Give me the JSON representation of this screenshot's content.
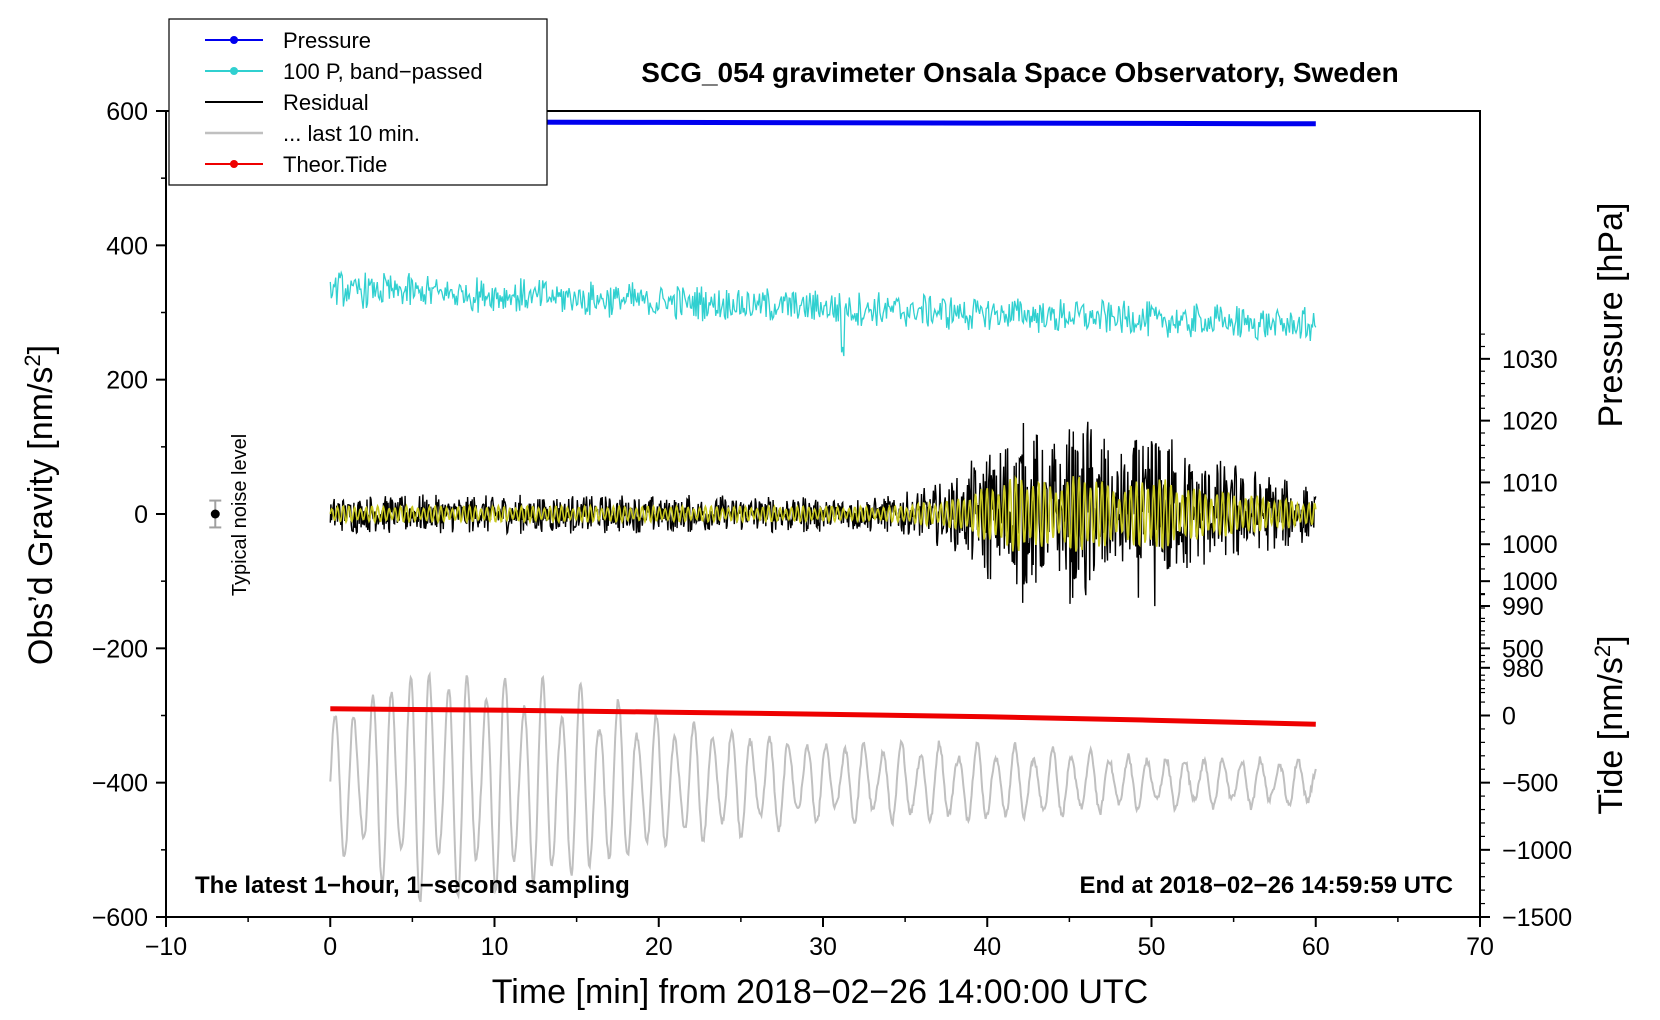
{
  "chart_data": {
    "type": "line",
    "title": "SCG_054 gravimeter Onsala Space Observatory, Sweden",
    "xlabel": "Time [min] from 2018−02−26 14:00:00 UTC",
    "ylabel_left": "Obs’d Gravity [nm/s",
    "ylabel_left_sup": "2",
    "ylabel_left_close": "]",
    "ylabel_right_pressure": "Pressure [hPa]",
    "ylabel_right_tide": "Tide [nm/s",
    "ylabel_right_tide_sup": "2",
    "ylabel_right_tide_close": "]",
    "xlim": [
      -10,
      70
    ],
    "ylim": [
      -600,
      600
    ],
    "x_ticks": [
      {
        "value": -10,
        "label": "−10"
      },
      {
        "value": 0,
        "label": "0"
      },
      {
        "value": 10,
        "label": "10"
      },
      {
        "value": 20,
        "label": "20"
      },
      {
        "value": 30,
        "label": "30"
      },
      {
        "value": 40,
        "label": "40"
      },
      {
        "value": 50,
        "label": "50"
      },
      {
        "value": 60,
        "label": "60"
      },
      {
        "value": 70,
        "label": "70"
      }
    ],
    "y_ticks": [
      {
        "value": 600,
        "label": "600"
      },
      {
        "value": 400,
        "label": "400"
      },
      {
        "value": 200,
        "label": "200"
      },
      {
        "value": 0,
        "label": "0"
      },
      {
        "value": -200,
        "label": "−200"
      },
      {
        "value": -400,
        "label": "−400"
      },
      {
        "value": -600,
        "label": "−600"
      }
    ],
    "pressure_axis": {
      "gravity_per_hpa": 9.2,
      "gravity_offset": -9245,
      "ticks": [
        {
          "value": 1030,
          "label": "1030"
        },
        {
          "value": 1020,
          "label": "1020"
        },
        {
          "value": 1010,
          "label": "1010"
        },
        {
          "value": 1000,
          "label": "1000"
        },
        {
          "value": 990,
          "label": "990"
        },
        {
          "value": 980,
          "label": "980"
        }
      ]
    },
    "tide_axis": {
      "gravity_per_unit": 0.2,
      "gravity_offset": -300,
      "ticks": [
        {
          "value": 1000,
          "label": "1000"
        },
        {
          "value": 500,
          "label": "500"
        },
        {
          "value": 0,
          "label": "0"
        },
        {
          "value": -500,
          "label": "−500"
        },
        {
          "value": -1000,
          "label": "−1000"
        },
        {
          "value": -1500,
          "label": "−1500"
        }
      ]
    },
    "legend": {
      "placement": "top-left",
      "entries": [
        {
          "name": "Pressure",
          "color": "#0000ee",
          "marker": true
        },
        {
          "name": "100 P, band−passed",
          "color": "#30d0d0",
          "marker": true
        },
        {
          "name": "Residual",
          "color": "#000000",
          "marker": false
        },
        {
          "name": "... last 10 min.",
          "color": "#c0c0c0",
          "marker": false
        },
        {
          "name": "Theor.Tide",
          "color": "#ee0000",
          "marker": true
        }
      ]
    },
    "series": [
      {
        "name": "Pressure",
        "color": "#0000ee",
        "x": [
          0,
          10,
          20,
          30,
          40,
          50,
          60
        ],
        "values": [
          584,
          583.5,
          583,
          582.5,
          582,
          581.5,
          581
        ]
      },
      {
        "name": "100 P, band−passed",
        "color": "#30d0d0",
        "x": [
          0,
          60
        ],
        "values": [
          335,
          280
        ],
        "band_noise_amplitude": 28
      },
      {
        "name": "Residual",
        "color": "#000000",
        "x": [
          0,
          60
        ],
        "values": [
          0,
          0
        ],
        "envelope": [
          [
            0,
            30
          ],
          [
            15,
            30
          ],
          [
            34,
            28
          ],
          [
            38,
            55
          ],
          [
            42,
            150
          ],
          [
            44,
            110
          ],
          [
            46,
            160
          ],
          [
            48,
            90
          ],
          [
            50,
            150
          ],
          [
            52,
            100
          ],
          [
            55,
            80
          ],
          [
            60,
            40
          ]
        ]
      },
      {
        "name": "Residual (filtered)",
        "color": "#c8c820",
        "x": [
          0,
          60
        ],
        "values": [
          0,
          0
        ]
      },
      {
        "name": "... last 10 min.",
        "color": "#c0c0c0",
        "x": [
          0,
          60
        ],
        "values": [
          -400,
          -400
        ],
        "envelope": [
          [
            0,
            100
          ],
          [
            5,
            180
          ],
          [
            15,
            150
          ],
          [
            20,
            100
          ],
          [
            30,
            60
          ],
          [
            40,
            60
          ],
          [
            50,
            40
          ],
          [
            60,
            35
          ]
        ]
      },
      {
        "name": "Theor.Tide",
        "color": "#ee0000",
        "x": [
          0,
          10,
          20,
          30,
          40,
          50,
          60
        ],
        "values": [
          -290,
          -292,
          -295,
          -298,
          -302,
          -307,
          -313
        ]
      }
    ],
    "noise_marker": {
      "x": -7,
      "y": 0,
      "error": 20,
      "label": "Typical noise level"
    },
    "annotations": {
      "bottom_left": "The latest 1−hour, 1−second sampling",
      "bottom_right": "End at 2018−02−26 14:59:59 UTC"
    }
  }
}
